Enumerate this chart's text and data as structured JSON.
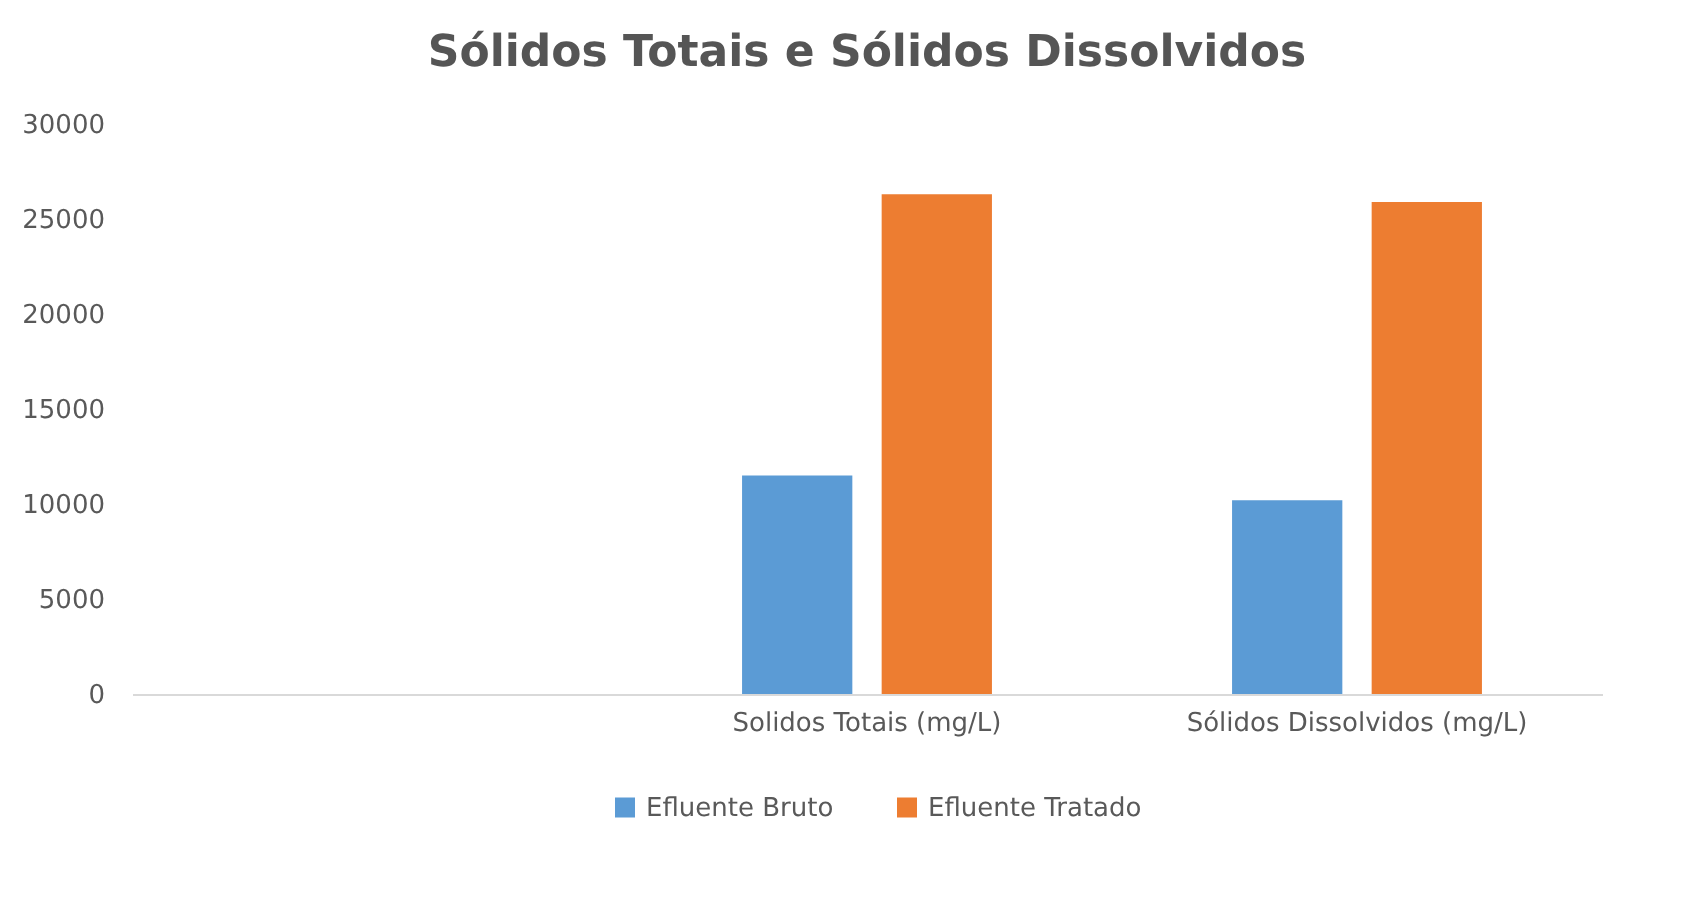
{
  "chart_data": {
    "type": "bar",
    "title": "Sólidos Totais e Sólidos Dissolvidos",
    "categories": [
      null,
      "Solidos Totais (mg/L)",
      "Sólidos Dissolvidos (mg/L)"
    ],
    "series": [
      {
        "name": "Efluente Bruto",
        "color": "#5b9bd5",
        "values": [
          null,
          11500,
          10200
        ]
      },
      {
        "name": "Efluente Tratado",
        "color": "#ed7d31",
        "values": [
          null,
          26300,
          25900
        ]
      }
    ],
    "ylim": [
      0,
      30000
    ],
    "yticks": [
      0,
      5000,
      10000,
      15000,
      20000,
      25000,
      30000
    ],
    "grid": false,
    "legend": "bottom"
  }
}
